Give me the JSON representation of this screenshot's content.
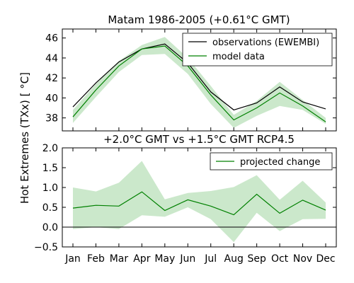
{
  "ylabel": "Hot Extremes (TXx) [$^\\circ C$]",
  "ylabel_display": "Hot Extremes (TXx) [ °C]",
  "chart_data": [
    {
      "type": "line",
      "title": "Matam 1986-2005 (+0.61°C GMT)",
      "xlabel": "",
      "ylabel": "",
      "categories": [
        "Jan",
        "Feb",
        "Mar",
        "Apr",
        "May",
        "Jun",
        "Jul",
        "Aug",
        "Sep",
        "Oct",
        "Nov",
        "Dec"
      ],
      "ylim": [
        36.7,
        46.9
      ],
      "yticks": [
        38,
        40,
        42,
        44,
        46
      ],
      "grid": false,
      "legend_position": "top-right",
      "colors": {
        "observations": "#000000",
        "model": "#008000",
        "band": "#a8d8a8"
      },
      "series": [
        {
          "name": "observations (EWEMBI)",
          "values": [
            39.1,
            41.5,
            43.6,
            44.9,
            45.4,
            43.5,
            40.6,
            38.8,
            39.5,
            41.1,
            39.6,
            38.9
          ]
        },
        {
          "name": "model data",
          "values": [
            38.1,
            40.8,
            43.2,
            44.9,
            45.2,
            43.2,
            40.3,
            37.8,
            39.0,
            40.5,
            39.2,
            37.6
          ]
        }
      ],
      "band": {
        "lower": [
          37.5,
          40.1,
          42.6,
          44.3,
          44.4,
          42.4,
          39.4,
          37.0,
          38.2,
          39.2,
          38.8,
          37.4
        ],
        "upper": [
          38.8,
          41.4,
          43.7,
          45.3,
          46.1,
          44.0,
          41.2,
          38.3,
          39.7,
          41.6,
          39.8,
          38.0
        ]
      }
    },
    {
      "type": "line",
      "title": "+2.0°C GMT vs +1.5°C GMT RCP4.5",
      "xlabel": "",
      "ylabel": "",
      "categories": [
        "Jan",
        "Feb",
        "Mar",
        "Apr",
        "May",
        "Jun",
        "Jul",
        "Aug",
        "Sep",
        "Oct",
        "Nov",
        "Dec"
      ],
      "ylim": [
        -0.5,
        2.0
      ],
      "yticks": [
        -0.5,
        0.0,
        0.5,
        1.0,
        1.5,
        2.0
      ],
      "ytick_labels": [
        "−0.5",
        "0.0",
        "0.5",
        "1.0",
        "1.5",
        "2.0"
      ],
      "zero_line": true,
      "grid": false,
      "legend_position": "top-right",
      "colors": {
        "line": "#008000",
        "band": "#a8d8a8",
        "zero": "#000000"
      },
      "series": [
        {
          "name": "projected change",
          "values": [
            0.48,
            0.55,
            0.53,
            0.89,
            0.42,
            0.69,
            0.53,
            0.31,
            0.83,
            0.35,
            0.68,
            0.43
          ]
        }
      ],
      "band": {
        "lower": [
          -0.05,
          0.0,
          -0.05,
          0.3,
          0.26,
          0.5,
          0.2,
          -0.38,
          0.36,
          -0.1,
          0.2,
          0.21
        ],
        "upper": [
          1.0,
          0.9,
          1.12,
          1.67,
          0.7,
          0.86,
          0.91,
          1.01,
          1.31,
          0.69,
          1.17,
          0.62
        ]
      }
    }
  ]
}
